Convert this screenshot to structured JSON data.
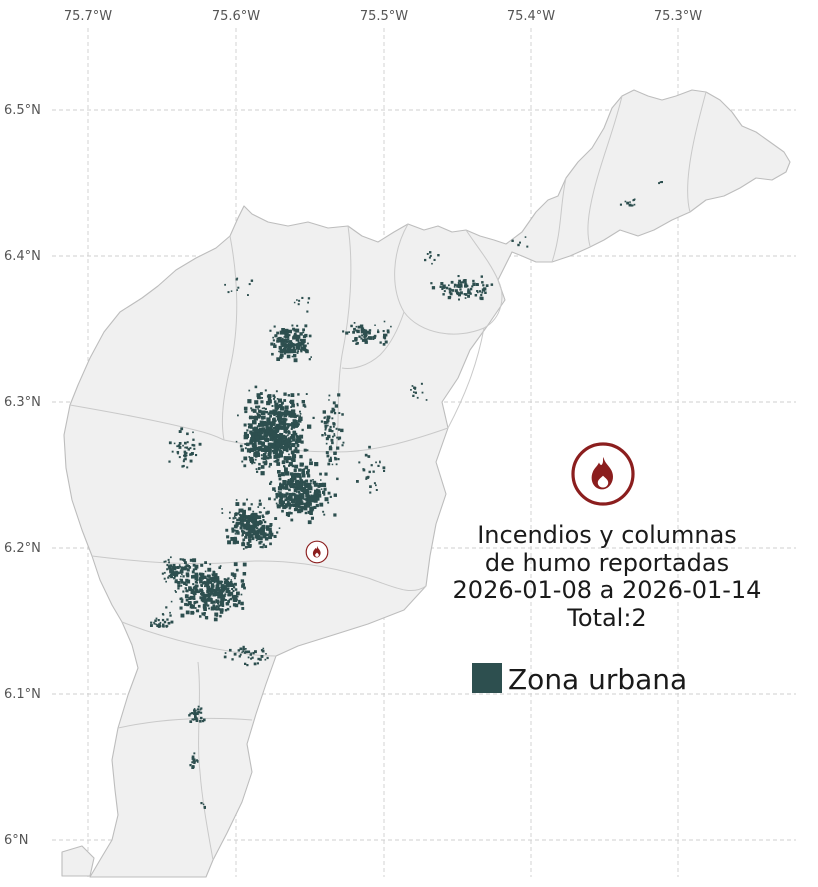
{
  "colors": {
    "urban_zone": "#2d4f4f",
    "fire_red": "#8b1e1e",
    "land_fill": "#f0f0f0",
    "land_border": "#bdbdbd",
    "municipality_border": "#c9c9c9",
    "grid": "#cfcfcf",
    "axis_text": "#555555",
    "annotation_text": "#1a1a1a",
    "background": "#ffffff"
  },
  "axis": {
    "lon_labels": [
      "75.7°W",
      "75.6°W",
      "75.5°W",
      "75.4°W",
      "75.3°W"
    ],
    "lat_labels": [
      "6.5°N",
      "6.4°N",
      "6.3°N",
      "6.2°N",
      "6.1°N",
      "6°N"
    ]
  },
  "annotation": {
    "lines": [
      "Incendios y columnas",
      "de humo reportadas",
      "2026-01-08 a 2026-01-14",
      "Total:2"
    ]
  },
  "legend": {
    "urban_label": "Zona urbana",
    "fire_icon": "flame-in-circle-icon"
  }
}
